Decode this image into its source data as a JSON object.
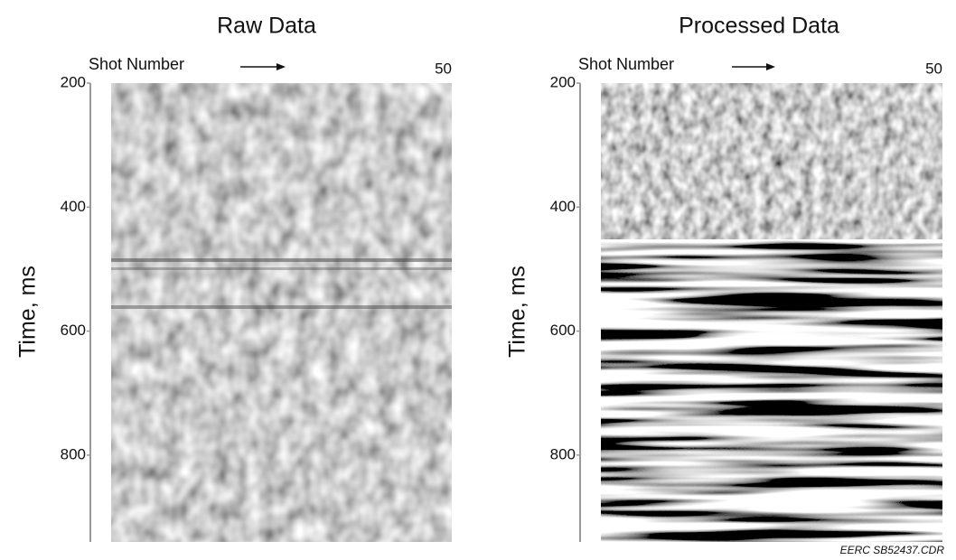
{
  "chart_data": [
    {
      "type": "image",
      "title": "Raw Data",
      "x_label": "Shot Number",
      "y_label": "Time, ms",
      "xlim": [
        1,
        50
      ],
      "xticks": [
        50
      ],
      "ylim": [
        200,
        940
      ],
      "yticks": [
        200,
        400,
        600,
        800
      ]
    },
    {
      "type": "image",
      "title": "Processed Data",
      "x_label": "Shot Number",
      "y_label": "Time, ms",
      "xlim": [
        1,
        50
      ],
      "xticks": [
        50
      ],
      "ylim": [
        200,
        940
      ],
      "yticks": [
        200,
        400,
        600,
        800
      ]
    }
  ],
  "footer": "EERC SB52437.CDR"
}
